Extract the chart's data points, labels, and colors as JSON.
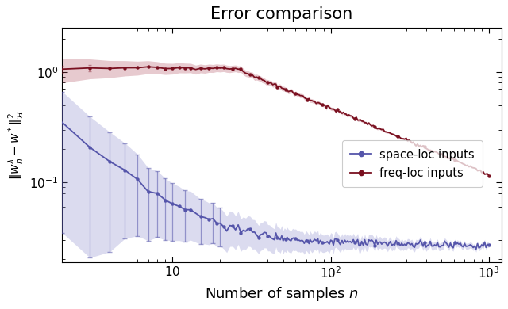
{
  "title": "Error comparison",
  "xlabel": "Number of samples $n$",
  "ylabel": "$\\| w_n^\\lambda - w^* \\|^2_\\mathcal{H}$",
  "xlim": [
    2,
    1200
  ],
  "ylim": [
    0.019,
    2.5
  ],
  "blue_color": "#5555aa",
  "blue_fill_color": "#8888cc",
  "red_color": "#7a1020",
  "red_fill_color": "#b05060",
  "legend_labels": [
    "space-loc inputs",
    "freq-loc inputs"
  ],
  "n_points": 300,
  "n_start": 2,
  "n_end": 1000
}
